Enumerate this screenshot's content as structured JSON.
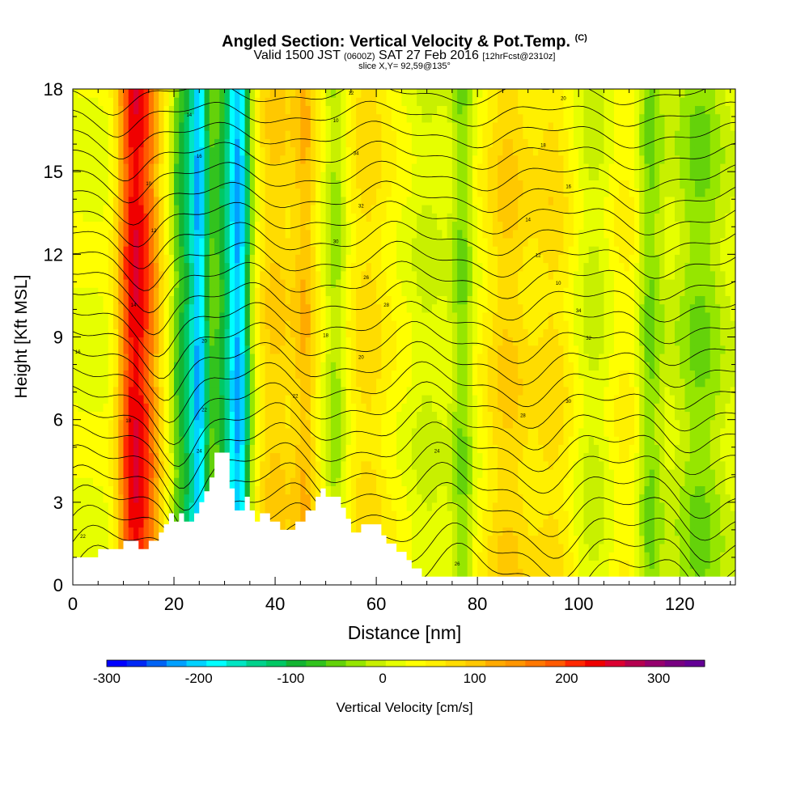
{
  "header": {
    "title": "Angled Section: Vertical Velocity & Pot.Temp.",
    "title_unit": "(C)",
    "subtitle_valid": "Valid 1500 JST",
    "subtitle_utc": "(0600Z)",
    "subtitle_date": "SAT 27 Feb 2016",
    "subtitle_fcst": "[12hrFcst@2310z]",
    "slice": "slice X,Y= 92,59@135°"
  },
  "chart_data": {
    "type": "heatmap",
    "xlabel": "Distance [nm]",
    "ylabel": "Height [Kft MSL]",
    "xlim": [
      0,
      131
    ],
    "ylim": [
      0,
      18
    ],
    "x_ticks": [
      "0",
      "20",
      "40",
      "60",
      "80",
      "100",
      "120"
    ],
    "x_tick_values": [
      0,
      20,
      40,
      60,
      80,
      100,
      120
    ],
    "y_ticks": [
      "0",
      "3",
      "6",
      "9",
      "12",
      "15",
      "18"
    ],
    "y_tick_values": [
      0,
      3,
      6,
      9,
      12,
      15,
      18
    ],
    "grid": false,
    "colorbar": {
      "label": "Vertical Velocity [cm/s]",
      "range": [
        -300,
        350
      ],
      "tick_labels": [
        "-300",
        "-200",
        "-100",
        "0",
        "100",
        "200",
        "300"
      ],
      "tick_values": [
        -300,
        -200,
        -100,
        0,
        100,
        200,
        300
      ],
      "colors": [
        "#0000ff",
        "#0028f5",
        "#0064f5",
        "#00a0ff",
        "#00d2ff",
        "#00ffff",
        "#00e6c3",
        "#00d28c",
        "#00c864",
        "#14b432",
        "#32c31e",
        "#64d20a",
        "#96e600",
        "#c8f000",
        "#e6ff00",
        "#ffff00",
        "#fff000",
        "#ffdc00",
        "#ffc800",
        "#ffaa00",
        "#ff9600",
        "#ff7800",
        "#ff5a00",
        "#ff2800",
        "#f00000",
        "#dc0032",
        "#b40050",
        "#96006e",
        "#780082",
        "#640096"
      ]
    },
    "terrain": {
      "x": [
        0,
        5,
        5,
        10,
        10,
        13,
        13,
        15,
        15,
        17,
        17,
        18,
        18,
        19,
        19,
        20,
        20,
        21,
        21,
        22,
        22,
        24,
        24,
        25,
        25,
        26,
        26,
        27,
        27,
        28,
        28,
        31,
        31,
        32,
        32,
        34,
        34,
        35,
        35,
        36,
        36,
        37,
        37,
        39,
        39,
        41,
        41,
        44,
        44,
        46,
        46,
        48,
        48,
        49,
        49,
        50,
        50,
        53,
        53,
        54,
        54,
        55,
        55,
        57,
        57,
        61,
        61,
        62,
        62,
        64,
        64,
        66,
        66,
        67,
        67,
        69,
        69,
        131
      ],
      "height": [
        1.0,
        1.0,
        1.3,
        1.3,
        1.6,
        1.6,
        1.3,
        1.3,
        1.6,
        1.6,
        1.9,
        1.9,
        2.2,
        2.2,
        2.6,
        2.6,
        2.3,
        2.3,
        2.6,
        2.6,
        2.3,
        2.3,
        2.6,
        2.6,
        3.0,
        3.0,
        3.4,
        3.4,
        3.9,
        3.9,
        4.8,
        4.8,
        3.5,
        3.5,
        2.7,
        2.7,
        3.2,
        3.2,
        2.7,
        2.7,
        2.3,
        2.3,
        2.6,
        2.6,
        2.3,
        2.3,
        2.0,
        2.0,
        2.3,
        2.3,
        2.7,
        2.7,
        3.2,
        3.2,
        3.5,
        3.5,
        3.2,
        3.2,
        2.8,
        2.8,
        2.4,
        2.4,
        1.9,
        1.9,
        2.2,
        2.2,
        1.8,
        1.8,
        1.5,
        1.5,
        1.2,
        1.2,
        0.9,
        0.9,
        0.6,
        0.6,
        0.3,
        0.3
      ]
    },
    "velocity_bands": [
      {
        "x": 14,
        "value": 170,
        "width": 3.5
      },
      {
        "x": 11,
        "value": 110,
        "width": 2.5
      },
      {
        "x": 22,
        "value": -110,
        "width": 2.5
      },
      {
        "x": 25,
        "value": -200,
        "width": 1.8
      },
      {
        "x": 33,
        "value": -200,
        "width": 2.2
      },
      {
        "x": 30,
        "value": -100,
        "width": 3
      },
      {
        "x": 40,
        "value": 70,
        "width": 4
      },
      {
        "x": 46,
        "value": 80,
        "width": 2.5
      },
      {
        "x": 52,
        "value": -50,
        "width": 2
      },
      {
        "x": 58,
        "value": 55,
        "width": 4
      },
      {
        "x": 63,
        "value": 10,
        "width": 4
      },
      {
        "x": 70,
        "value": -20,
        "width": 3
      },
      {
        "x": 77,
        "value": -60,
        "width": 2.2
      },
      {
        "x": 86,
        "value": 70,
        "width": 5
      },
      {
        "x": 95,
        "value": 55,
        "width": 4
      },
      {
        "x": 103,
        "value": -25,
        "width": 3
      },
      {
        "x": 110,
        "value": 30,
        "width": 4
      },
      {
        "x": 114,
        "value": -70,
        "width": 2.5
      },
      {
        "x": 124,
        "value": -60,
        "width": 5
      }
    ],
    "theta_contour_labels": [
      "10",
      "12",
      "14",
      "16",
      "18",
      "20",
      "22",
      "24",
      "26",
      "28",
      "30",
      "32",
      "34"
    ]
  }
}
